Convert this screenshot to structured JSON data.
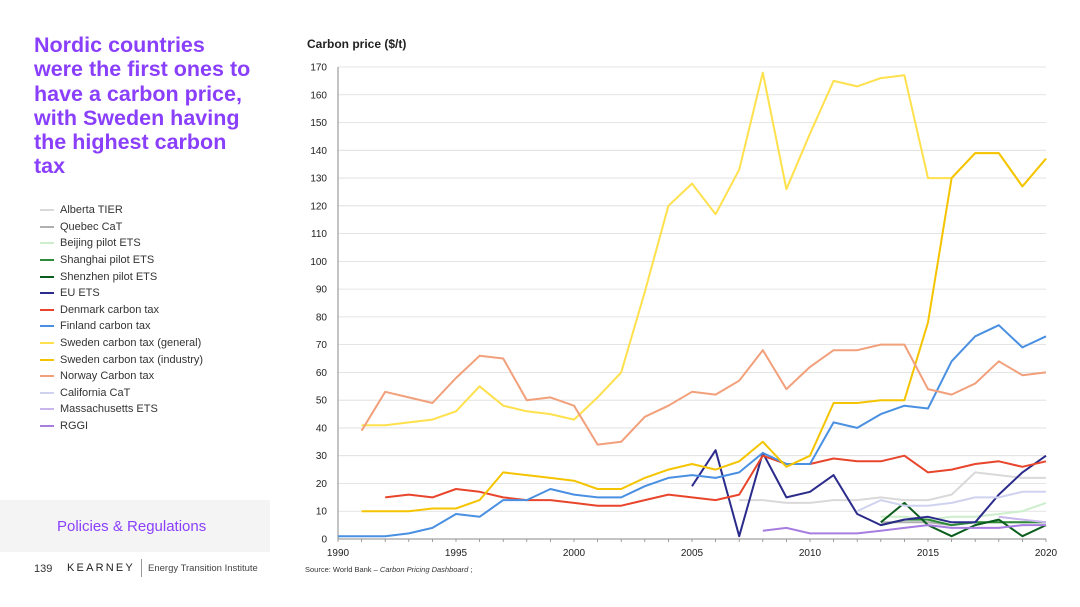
{
  "headline": "Nordic countries were the first ones to have a carbon price, with Sweden having the highest carbon tax",
  "section": "Policies & Regulations",
  "footer": {
    "page_number": "139",
    "brand": "KEARNEY",
    "sub_brand": "Energy Transition Institute"
  },
  "source": {
    "prefix": "Source: World Bank – ",
    "italic": "Carbon Pricing Dashboard",
    "suffix": " ;"
  },
  "chart_data": {
    "type": "line",
    "ylabel": "Carbon price ($/t)",
    "xlim": [
      1990,
      2020
    ],
    "ylim": [
      0,
      170
    ],
    "x_ticks": [
      1990,
      1995,
      2000,
      2005,
      2010,
      2015,
      2020
    ],
    "y_ticks": [
      0,
      10,
      20,
      30,
      40,
      50,
      60,
      70,
      80,
      90,
      100,
      110,
      120,
      130,
      140,
      150,
      160,
      170
    ],
    "grid": "horizontal",
    "legend_position": "left",
    "series": [
      {
        "name": "Alberta TIER",
        "color": "#d9d9d9",
        "x": [
          2007,
          2008,
          2009,
          2010,
          2011,
          2012,
          2013,
          2014,
          2015,
          2016,
          2017,
          2018,
          2019,
          2020
        ],
        "values": [
          14,
          14,
          13,
          13,
          14,
          14,
          15,
          14,
          14,
          16,
          24,
          23,
          22,
          22
        ]
      },
      {
        "name": "Quebec CaT",
        "color": "#b0b0b0",
        "x": [
          2013,
          2014,
          2015,
          2016,
          2017,
          2018,
          2019,
          2020
        ],
        "values": [
          6,
          6,
          6,
          5,
          6,
          6,
          6,
          6
        ]
      },
      {
        "name": "Beijing pilot ETS",
        "color": "#cdeecd",
        "x": [
          2013,
          2014,
          2015,
          2016,
          2017,
          2018,
          2019,
          2020
        ],
        "values": [
          8,
          8,
          7,
          8,
          8,
          9,
          10,
          13
        ]
      },
      {
        "name": "Shanghai pilot ETS",
        "color": "#2e8b3a",
        "x": [
          2013,
          2014,
          2015,
          2016,
          2017,
          2018,
          2019,
          2020
        ],
        "values": [
          5,
          7,
          7,
          5,
          6,
          6,
          6,
          6
        ]
      },
      {
        "name": "Shenzhen pilot ETS",
        "color": "#0b5d1e",
        "x": [
          2013,
          2014,
          2015,
          2016,
          2017,
          2018,
          2019,
          2020
        ],
        "values": [
          6,
          13,
          5,
          1,
          5,
          7,
          1,
          5
        ]
      },
      {
        "name": "EU ETS",
        "color": "#2b2b8c",
        "x": [
          2005,
          2006,
          2007,
          2008,
          2009,
          2010,
          2011,
          2012,
          2013,
          2014,
          2015,
          2016,
          2017,
          2018,
          2019,
          2020
        ],
        "values": [
          19,
          32,
          1,
          31,
          15,
          17,
          23,
          9,
          5,
          7,
          8,
          6,
          6,
          16,
          24,
          30
        ]
      },
      {
        "name": "Denmark carbon tax",
        "color": "#e8452c",
        "x": [
          1992,
          1993,
          1994,
          1995,
          1996,
          1997,
          1998,
          1999,
          2000,
          2001,
          2002,
          2003,
          2004,
          2005,
          2006,
          2007,
          2008,
          2009,
          2010,
          2011,
          2012,
          2013,
          2014,
          2015,
          2016,
          2017,
          2018,
          2019,
          2020
        ],
        "values": [
          15,
          16,
          15,
          18,
          17,
          15,
          14,
          14,
          13,
          12,
          12,
          14,
          16,
          15,
          14,
          16,
          30,
          27,
          27,
          29,
          28,
          28,
          30,
          24,
          25,
          27,
          28,
          26,
          28
        ]
      },
      {
        "name": "Finland carbon tax",
        "color": "#4a90e2",
        "x": [
          1990,
          1991,
          1992,
          1993,
          1994,
          1995,
          1996,
          1997,
          1998,
          1999,
          2000,
          2001,
          2002,
          2003,
          2004,
          2005,
          2006,
          2007,
          2008,
          2009,
          2010,
          2011,
          2012,
          2013,
          2014,
          2015,
          2016,
          2017,
          2018,
          2019,
          2020
        ],
        "values": [
          1,
          1,
          1,
          2,
          4,
          9,
          8,
          14,
          14,
          18,
          16,
          15,
          15,
          19,
          22,
          23,
          22,
          24,
          31,
          27,
          27,
          42,
          40,
          45,
          48,
          47,
          64,
          73,
          77,
          69,
          73
        ]
      },
      {
        "name": "Sweden carbon tax (general)",
        "color": "#ffe04d",
        "x": [
          1991,
          1992,
          1993,
          1994,
          1995,
          1996,
          1997,
          1998,
          1999,
          2000,
          2001,
          2002,
          2003,
          2004,
          2005,
          2006,
          2007,
          2008,
          2009,
          2010,
          2011,
          2012,
          2013,
          2014,
          2015,
          2016,
          2017,
          2018,
          2019,
          2020
        ],
        "values": [
          41,
          41,
          42,
          43,
          46,
          55,
          48,
          46,
          45,
          43,
          51,
          60,
          89,
          120,
          128,
          117,
          133,
          168,
          126,
          146,
          165,
          163,
          166,
          167,
          130,
          130,
          139,
          139,
          127,
          137
        ]
      },
      {
        "name": "Sweden carbon tax (industry)",
        "color": "#f5c400",
        "x": [
          1991,
          1992,
          1993,
          1994,
          1995,
          1996,
          1997,
          1998,
          1999,
          2000,
          2001,
          2002,
          2003,
          2004,
          2005,
          2006,
          2007,
          2008,
          2009,
          2010,
          2011,
          2012,
          2013,
          2014,
          2015,
          2016,
          2017,
          2018,
          2019,
          2020
        ],
        "values": [
          10,
          10,
          10,
          11,
          11,
          14,
          24,
          23,
          22,
          21,
          18,
          18,
          22,
          25,
          27,
          25,
          28,
          35,
          26,
          30,
          49,
          49,
          50,
          50,
          78,
          130,
          139,
          139,
          127,
          137
        ]
      },
      {
        "name": "Norway Carbon tax",
        "color": "#f2a07b",
        "x": [
          1991,
          1992,
          1993,
          1994,
          1995,
          1996,
          1997,
          1998,
          1999,
          2000,
          2001,
          2002,
          2003,
          2004,
          2005,
          2006,
          2007,
          2008,
          2009,
          2010,
          2011,
          2012,
          2013,
          2014,
          2015,
          2016,
          2017,
          2018,
          2019,
          2020
        ],
        "values": [
          39,
          53,
          51,
          49,
          58,
          66,
          65,
          50,
          51,
          48,
          34,
          35,
          44,
          48,
          53,
          52,
          57,
          68,
          54,
          62,
          68,
          68,
          70,
          70,
          54,
          52,
          56,
          64,
          59,
          60
        ]
      },
      {
        "name": "California CaT",
        "color": "#cfd3f0",
        "x": [
          2012,
          2013,
          2014,
          2015,
          2016,
          2017,
          2018,
          2019,
          2020
        ],
        "values": [
          10,
          14,
          12,
          12,
          13,
          15,
          15,
          17,
          17
        ]
      },
      {
        "name": "Massachusetts ETS",
        "color": "#c9b6ec",
        "x": [
          2018,
          2019,
          2020
        ],
        "values": [
          8,
          7,
          6
        ]
      },
      {
        "name": "RGGI",
        "color": "#a77ee0",
        "x": [
          2008,
          2009,
          2010,
          2011,
          2012,
          2013,
          2014,
          2015,
          2016,
          2017,
          2018,
          2019,
          2020
        ],
        "values": [
          3,
          4,
          2,
          2,
          2,
          3,
          4,
          5,
          4,
          4,
          4,
          5,
          5
        ]
      }
    ]
  }
}
